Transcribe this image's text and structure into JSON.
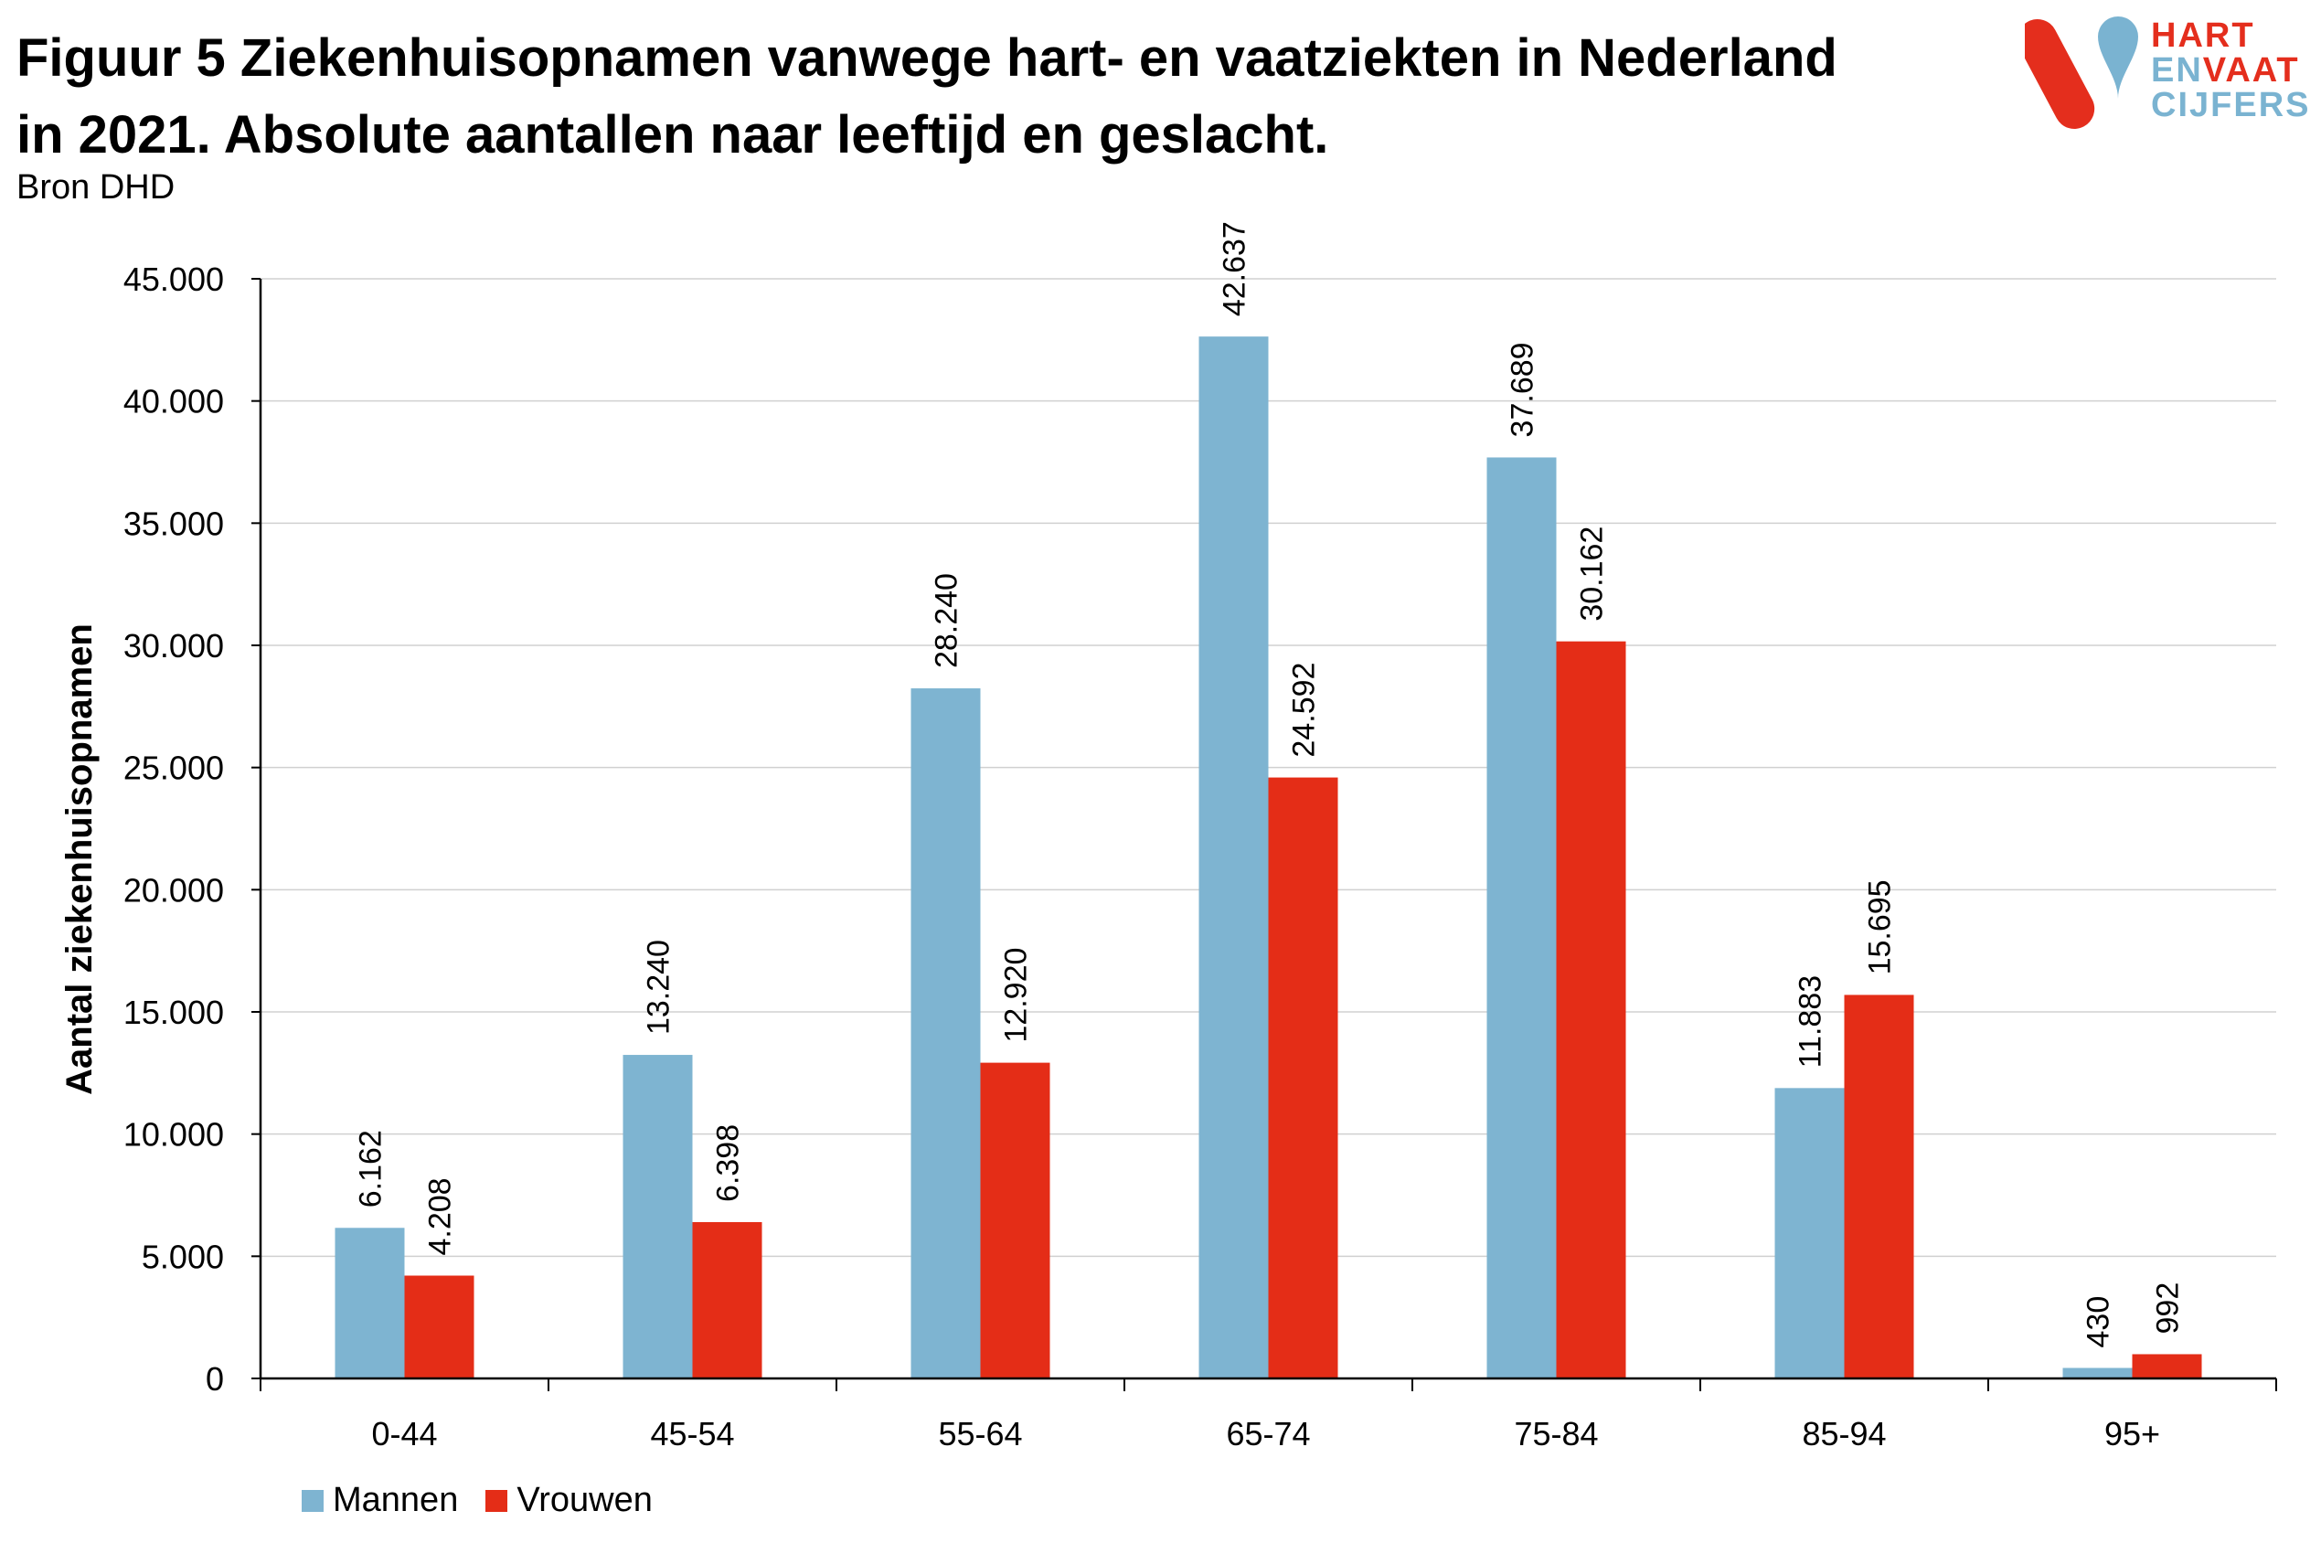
{
  "title": {
    "line1": "Figuur 5 Ziekenhuisopnamen vanwege hart- en vaatziekten in Nederland",
    "line2": "in 2021. Absolute aantallen naar leeftijd en geslacht."
  },
  "source": "Bron DHD",
  "logo": {
    "line1": "HART",
    "line2a": "EN",
    "line2b": "VAAT",
    "line3": "CIJFERS",
    "colors": {
      "red": "#e42e1d",
      "blue": "#7ab3d1"
    }
  },
  "chart_data": {
    "type": "bar",
    "title": "Figuur 5 Ziekenhuisopnamen vanwege hart- en vaatziekten in Nederland in 2021. Absolute aantallen naar leeftijd en geslacht.",
    "xlabel": "",
    "ylabel": "Aantal ziekenhuisopnamen",
    "ylim": [
      0,
      45000
    ],
    "yticks": [
      0,
      5000,
      10000,
      15000,
      20000,
      25000,
      30000,
      35000,
      40000,
      45000
    ],
    "ytick_labels": [
      "0",
      "5.000",
      "10.000",
      "15.000",
      "20.000",
      "25.000",
      "30.000",
      "35.000",
      "40.000",
      "45.000"
    ],
    "categories": [
      "0-44",
      "45-54",
      "55-64",
      "65-74",
      "75-84",
      "85-94",
      "95+"
    ],
    "series": [
      {
        "name": "Mannen",
        "color": "#7eb4d1",
        "values": [
          6162,
          13240,
          28240,
          42637,
          37689,
          11883,
          430
        ],
        "labels": [
          "6.162",
          "13.240",
          "28.240",
          "42.637",
          "37.689",
          "11.883",
          "430"
        ]
      },
      {
        "name": "Vrouwen",
        "color": "#e42d17",
        "values": [
          4208,
          6398,
          12920,
          24592,
          30162,
          15695,
          992
        ],
        "labels": [
          "4.208",
          "6.398",
          "12.920",
          "24.592",
          "30.162",
          "15.695",
          "992"
        ]
      }
    ],
    "grid": true,
    "legend": "bottom-left"
  }
}
